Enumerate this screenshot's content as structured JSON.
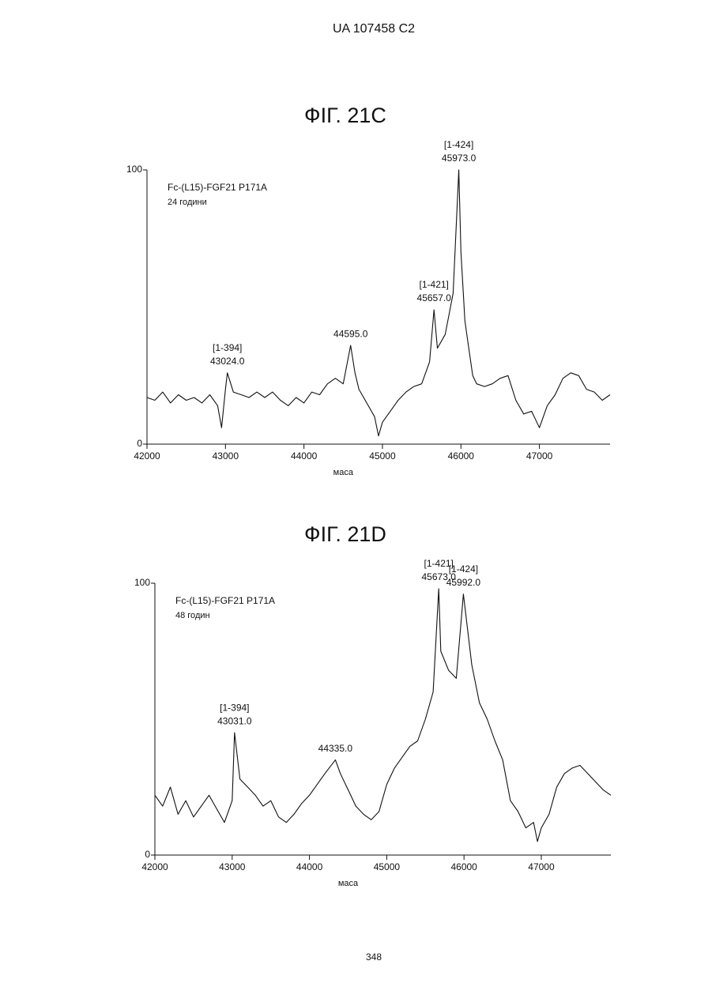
{
  "page": {
    "header": "UA   107458   C2",
    "page_number": "348"
  },
  "chart_data": [
    {
      "type": "line",
      "title": "ФІГ. 21C",
      "sample": "Fc-(L15)-FGF21 P171A",
      "condition": "24 години",
      "x_label": "маса",
      "color": "#111111",
      "xlim": [
        42000,
        47900
      ],
      "ylim": [
        0,
        100
      ],
      "xticks": [
        42000,
        43000,
        44000,
        45000,
        46000,
        47000
      ],
      "yticks": [
        0,
        100
      ],
      "x": [
        42000,
        42100,
        42200,
        42300,
        42400,
        42500,
        42600,
        42700,
        42800,
        42900,
        42950,
        43000,
        43024,
        43100,
        43200,
        43300,
        43400,
        43500,
        43600,
        43700,
        43800,
        43900,
        44000,
        44100,
        44200,
        44300,
        44400,
        44500,
        44595,
        44650,
        44700,
        44800,
        44900,
        44950,
        45000,
        45100,
        45200,
        45300,
        45400,
        45500,
        45600,
        45657,
        45700,
        45800,
        45900,
        45973,
        46000,
        46050,
        46100,
        46150,
        46200,
        46300,
        46400,
        46500,
        46600,
        46700,
        46800,
        46900,
        47000,
        47100,
        47200,
        47300,
        47400,
        47500,
        47600,
        47700,
        47800,
        47900
      ],
      "values": [
        17,
        16,
        19,
        15,
        18,
        16,
        17,
        15,
        18,
        14,
        6,
        20,
        26,
        19,
        18,
        17,
        19,
        17,
        19,
        16,
        14,
        17,
        15,
        19,
        18,
        22,
        24,
        22,
        36,
        26,
        20,
        15,
        10,
        3,
        8,
        12,
        16,
        19,
        21,
        22,
        30,
        49,
        35,
        40,
        55,
        100,
        70,
        45,
        35,
        25,
        22,
        21,
        22,
        24,
        25,
        16,
        11,
        12,
        6,
        14,
        18,
        24,
        26,
        25,
        20,
        19,
        16,
        18
      ],
      "annotations": [
        {
          "x": 43024,
          "y": 26,
          "range": "[1-394]",
          "label": "43024.0"
        },
        {
          "x": 44595,
          "y": 36,
          "label": "44595.0"
        },
        {
          "x": 45657,
          "y": 49,
          "range": "[1-421]",
          "label": "45657.0"
        },
        {
          "x": 45973,
          "y": 100,
          "range": "[1-424]",
          "label": "45973.0"
        }
      ]
    },
    {
      "type": "line",
      "title": "ФІГ. 21D",
      "sample": "Fc-(L15)-FGF21 P171A",
      "condition": "48 годин",
      "x_label": "маса",
      "color": "#111111",
      "xlim": [
        42000,
        47900
      ],
      "ylim": [
        0,
        100
      ],
      "xticks": [
        42000,
        43000,
        44000,
        45000,
        46000,
        47000
      ],
      "yticks": [
        0,
        100
      ],
      "x": [
        42000,
        42100,
        42200,
        42300,
        42400,
        42500,
        42600,
        42700,
        42800,
        42900,
        43000,
        43031,
        43100,
        43200,
        43300,
        43400,
        43500,
        43600,
        43700,
        43800,
        43900,
        44000,
        44100,
        44200,
        44335,
        44400,
        44500,
        44600,
        44700,
        44800,
        44900,
        45000,
        45100,
        45200,
        45300,
        45400,
        45500,
        45600,
        45673,
        45700,
        45800,
        45900,
        45992,
        46100,
        46200,
        46300,
        46400,
        46500,
        46600,
        46700,
        46800,
        46900,
        46950,
        47000,
        47100,
        47200,
        47300,
        47400,
        47500,
        47600,
        47700,
        47800,
        47900
      ],
      "values": [
        22,
        18,
        25,
        15,
        20,
        14,
        18,
        22,
        17,
        12,
        20,
        45,
        28,
        25,
        22,
        18,
        20,
        14,
        12,
        15,
        19,
        22,
        26,
        30,
        35,
        30,
        24,
        18,
        15,
        13,
        16,
        26,
        32,
        36,
        40,
        42,
        50,
        60,
        98,
        75,
        68,
        65,
        96,
        70,
        56,
        50,
        42,
        35,
        20,
        16,
        10,
        12,
        5,
        10,
        15,
        25,
        30,
        32,
        33,
        30,
        27,
        24,
        22
      ],
      "annotations": [
        {
          "x": 43031,
          "y": 45,
          "range": "[1-394]",
          "label": "43031.0"
        },
        {
          "x": 44335,
          "y": 35,
          "label": "44335.0"
        },
        {
          "x": 45673,
          "y": 98,
          "range": "[1-421]",
          "label": "45673.0"
        },
        {
          "x": 45992,
          "y": 96,
          "range": "[1-424]",
          "label": "45992.0"
        }
      ]
    }
  ]
}
